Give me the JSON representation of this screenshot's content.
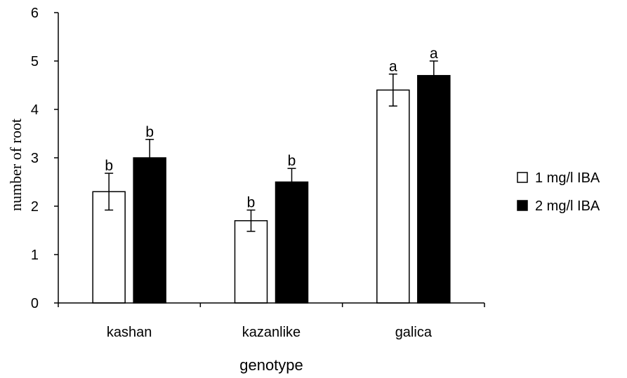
{
  "chart_data": {
    "type": "bar",
    "title": "",
    "xlabel": "genotype",
    "ylabel": "number of root",
    "categories": [
      "kashan",
      "kazanlike",
      "galica"
    ],
    "ylim": [
      0,
      6
    ],
    "yticks": [
      0,
      1,
      2,
      3,
      4,
      5,
      6
    ],
    "grid": false,
    "legend_position": "right",
    "series": [
      {
        "name": "1 mg/l IBA",
        "fill": "#ffffff",
        "stroke": "#000000",
        "values": [
          2.3,
          1.7,
          4.4
        ],
        "errors": [
          0.38,
          0.22,
          0.33
        ],
        "labels": [
          "b",
          "b",
          "a"
        ]
      },
      {
        "name": "2 mg/l IBA",
        "fill": "#000000",
        "stroke": "#000000",
        "values": [
          3.0,
          2.5,
          4.7
        ],
        "errors": [
          0.38,
          0.28,
          0.3
        ],
        "labels": [
          "b",
          "b",
          "a"
        ]
      }
    ]
  }
}
